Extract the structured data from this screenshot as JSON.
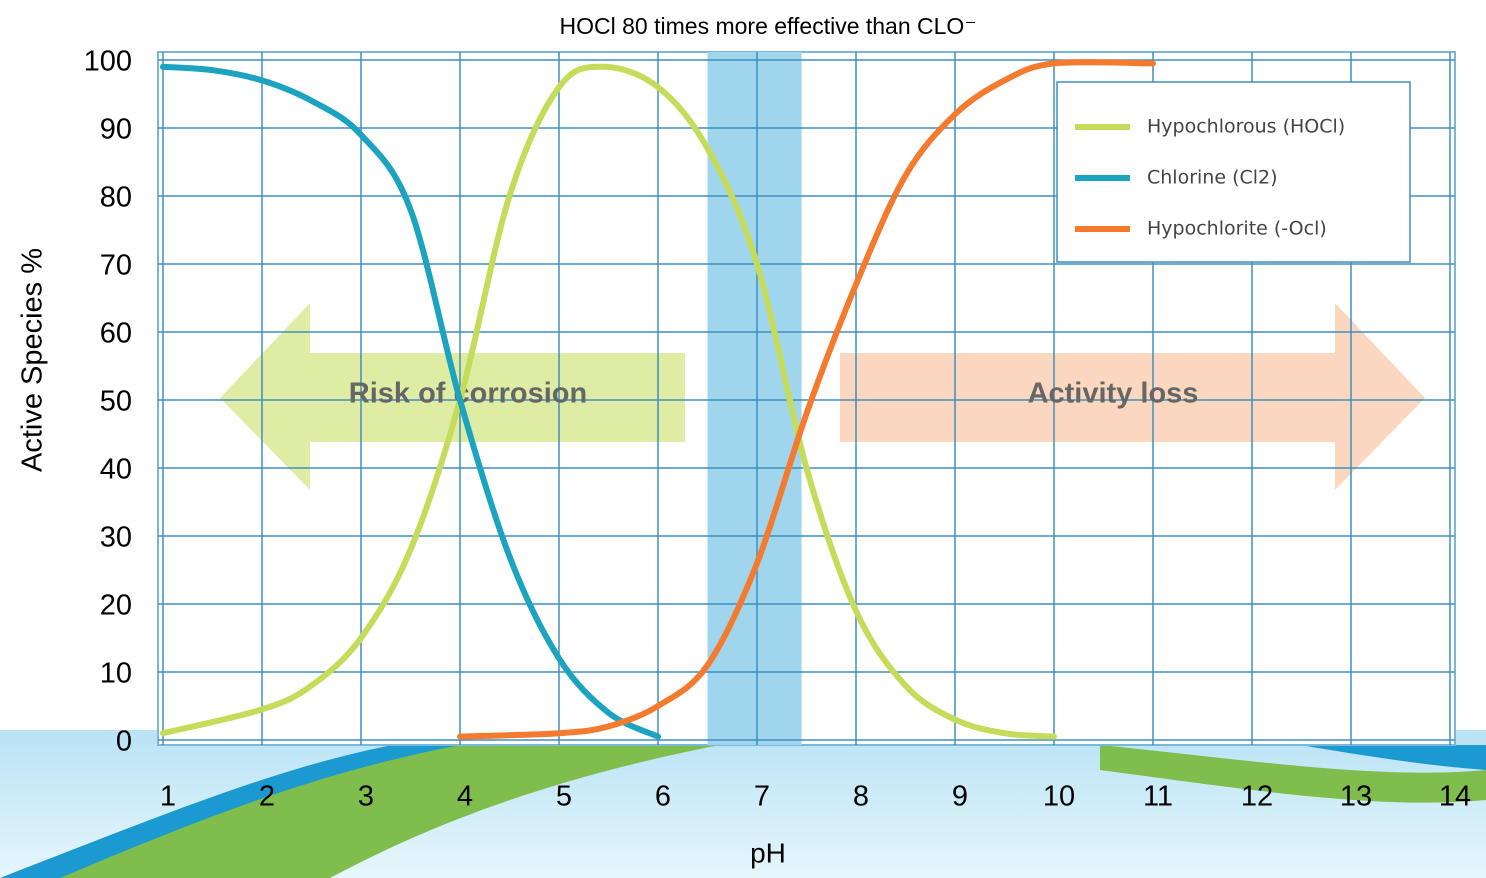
{
  "chart_data": {
    "type": "line",
    "title": "HOCl 80 times more effective than CLO⁻",
    "x_label": "pH",
    "y_label": "Active Species %",
    "xlim": [
      1,
      14
    ],
    "ylim": [
      0,
      100
    ],
    "xticks": [
      1,
      2,
      3,
      4,
      5,
      6,
      7,
      8,
      9,
      10,
      11,
      12,
      13,
      14
    ],
    "yticks": [
      0,
      10,
      20,
      30,
      40,
      50,
      60,
      70,
      80,
      90,
      100
    ],
    "grid": true,
    "legend": "upper right",
    "shaded_range": [
      6.5,
      7.45
    ],
    "annotations": [
      "Risk of corrosion",
      "Activity loss"
    ],
    "series": [
      {
        "name": "Hypochlorous (HOCl)",
        "color": "#c5dc5a",
        "x": [
          1,
          2,
          2.5,
          3,
          3.5,
          4,
          4.5,
          5,
          5.45,
          6,
          6.5,
          7,
          7.5,
          8,
          8.5,
          9,
          9.5,
          10
        ],
        "values": [
          1,
          4.5,
          8,
          15,
          28,
          50,
          80,
          96,
          99,
          96,
          87,
          70,
          40,
          19,
          8,
          3,
          1,
          0.5
        ]
      },
      {
        "name": "Chlorine (Cl2)",
        "color": "#1ba3bf",
        "x": [
          1,
          1.5,
          2,
          2.5,
          3,
          3.5,
          4,
          4.5,
          5,
          5.5,
          6
        ],
        "values": [
          99,
          98.5,
          97,
          94,
          89,
          78,
          50,
          27,
          12,
          4,
          0.5
        ]
      },
      {
        "name": "Hypochlorite (-Ocl)",
        "color": "#f47a2e",
        "x": [
          4,
          5,
          5.5,
          6,
          6.5,
          7,
          7.5,
          8,
          8.5,
          9,
          9.5,
          10,
          11
        ],
        "values": [
          0.5,
          1,
          2,
          5,
          11,
          26,
          48,
          67,
          83,
          92,
          97,
          99.5,
          99.5
        ]
      }
    ]
  }
}
